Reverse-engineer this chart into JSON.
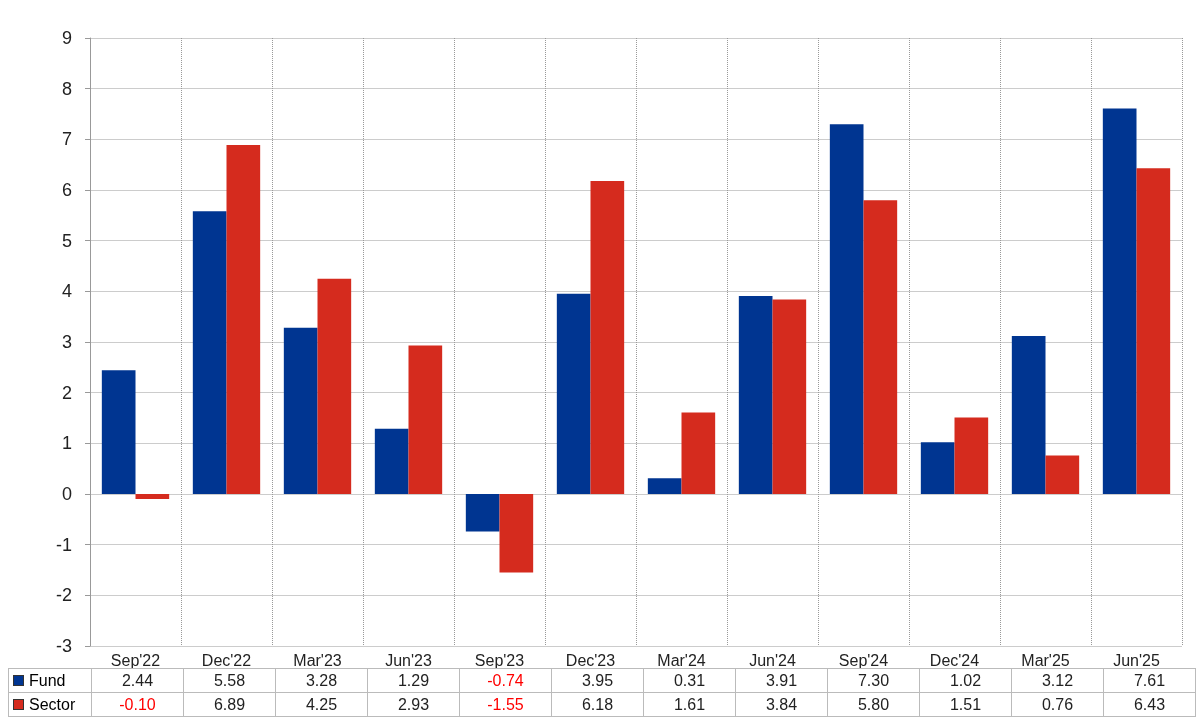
{
  "chart_data": {
    "type": "bar",
    "categories": [
      "Sep'22",
      "Dec'22",
      "Mar'23",
      "Jun'23",
      "Sep'23",
      "Dec'23",
      "Mar'24",
      "Jun'24",
      "Sep'24",
      "Dec'24",
      "Mar'25",
      "Jun'25"
    ],
    "series": [
      {
        "name": "Fund",
        "color": "#003591",
        "values": [
          2.44,
          5.58,
          3.28,
          1.29,
          -0.74,
          3.95,
          0.31,
          3.91,
          7.3,
          1.02,
          3.12,
          7.61
        ],
        "value_labels": [
          "2.44",
          "5.58",
          "3.28",
          "1.29",
          "-0.74",
          "3.95",
          "0.31",
          "3.91",
          "7.30",
          "1.02",
          "3.12",
          "7.61"
        ]
      },
      {
        "name": "Sector",
        "color": "#d52b1e",
        "values": [
          -0.1,
          6.89,
          4.25,
          2.93,
          -1.55,
          6.18,
          1.61,
          3.84,
          5.8,
          1.51,
          0.76,
          6.43
        ],
        "value_labels": [
          "-0.10",
          "6.89",
          "4.25",
          "2.93",
          "-1.55",
          "6.18",
          "1.61",
          "3.84",
          "5.80",
          "1.51",
          "0.76",
          "6.43"
        ]
      }
    ],
    "ylim": [
      -3,
      9
    ],
    "yticks": [
      -3,
      -2,
      -1,
      0,
      1,
      2,
      3,
      4,
      5,
      6,
      7,
      8,
      9
    ],
    "grid": true,
    "legend": "bottom"
  }
}
